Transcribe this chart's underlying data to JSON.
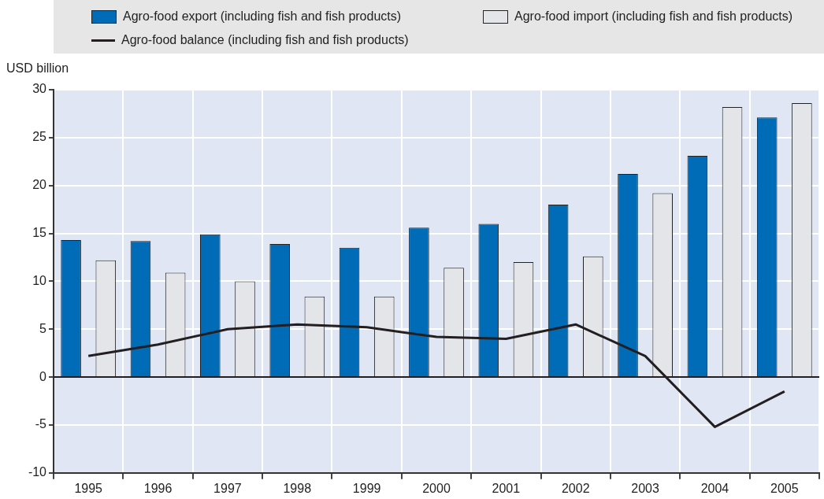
{
  "chart_data": {
    "type": "bar",
    "ylabel": "USD billion",
    "categories": [
      "1995",
      "1996",
      "1997",
      "1998",
      "1999",
      "2000",
      "2001",
      "2002",
      "2003",
      "2004",
      "2005"
    ],
    "series": [
      {
        "name": "Agro-food export (including fish and fish products)",
        "color": "#006bb6",
        "values": [
          14.3,
          14.2,
          14.9,
          13.9,
          13.5,
          15.6,
          16.0,
          18.0,
          21.2,
          23.1,
          27.1
        ]
      },
      {
        "name": "Agro-food import (including fish and fish products)",
        "color": "#e4e5e9",
        "values": [
          12.2,
          10.9,
          10.0,
          8.4,
          8.4,
          11.4,
          12.0,
          12.6,
          19.2,
          28.2,
          28.6
        ]
      },
      {
        "name": "Agro-food balance (including fish and fish products)",
        "type": "line",
        "color": "#231f20",
        "values": [
          2.2,
          3.4,
          5.0,
          5.5,
          5.2,
          4.2,
          4.0,
          5.5,
          2.2,
          -5.2,
          -1.5
        ]
      }
    ],
    "ylim": [
      -10,
      30
    ],
    "yticks": [
      -10,
      -5,
      0,
      5,
      10,
      15,
      20,
      25,
      30
    ],
    "grid": true,
    "legend": "top",
    "marker": "none"
  }
}
